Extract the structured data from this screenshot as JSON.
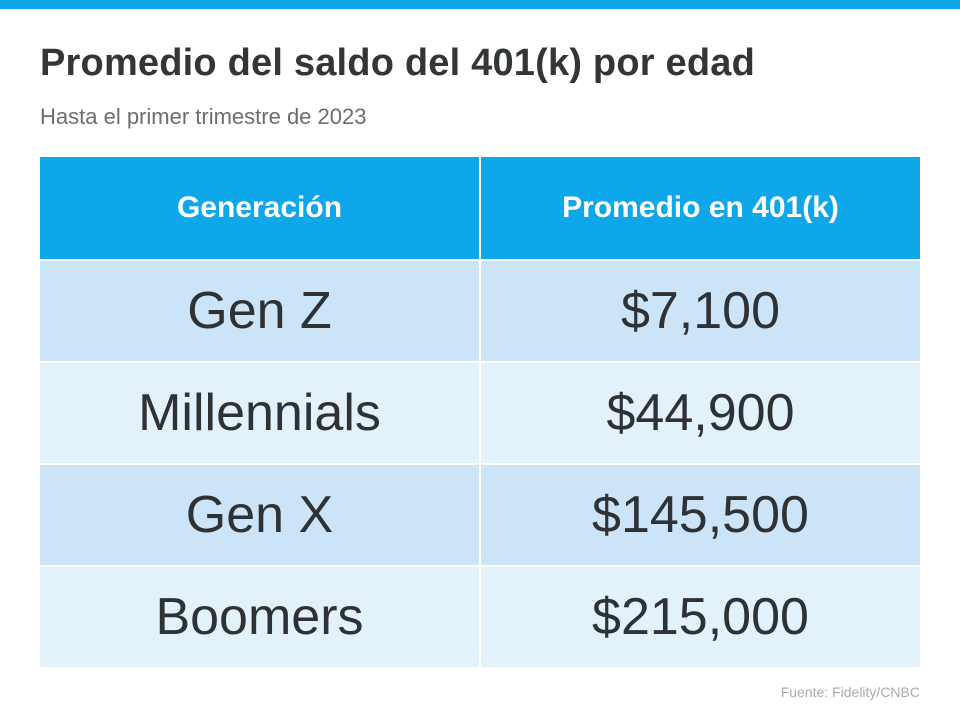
{
  "header": {
    "title": "Promedio del saldo del 401(k) por edad",
    "subtitle": "Hasta el primer trimestre de 2023"
  },
  "colors": {
    "accent": "#0ea8ea",
    "row_dark": "#cce4f7",
    "row_light": "#e3f1fb",
    "text": "#2f3235"
  },
  "chart_data": {
    "type": "table",
    "title": "Promedio del saldo del 401(k) por edad",
    "subtitle": "Hasta el primer trimestre de 2023",
    "columns": [
      "Generación",
      "Promedio en 401(k)"
    ],
    "rows": [
      [
        "Gen Z",
        "$7,100"
      ],
      [
        "Millennials",
        "$44,900"
      ],
      [
        "Gen X",
        "$145,500"
      ],
      [
        "Boomers",
        "$215,000"
      ]
    ],
    "values": [
      7100,
      44900,
      145500,
      215000
    ],
    "source": "Fuente:  Fidelity/CNBC"
  }
}
